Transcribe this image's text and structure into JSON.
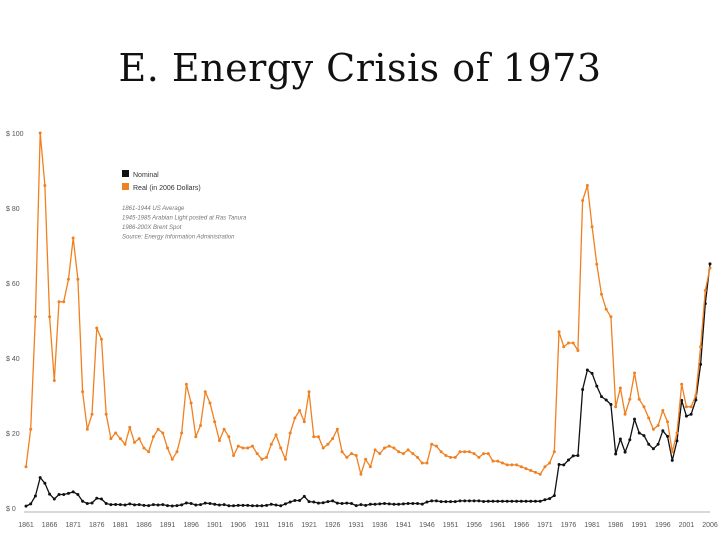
{
  "slide": {
    "title": "E. Energy Crisis of 1973"
  },
  "chart_data": {
    "type": "line",
    "title": "",
    "xlabel": "",
    "ylabel": "",
    "ylim": [
      0,
      100
    ],
    "xlim": [
      1861,
      2006
    ],
    "grid": false,
    "legend_placement": "top-left",
    "y_ticks": [
      "$ 0",
      "$ 20",
      "$ 40",
      "$ 60",
      "$ 80",
      "$ 100"
    ],
    "x_ticks": [
      "1861",
      "1866",
      "1871",
      "1876",
      "1881",
      "1886",
      "1891",
      "1896",
      "1901",
      "1906",
      "1911",
      "1916",
      "1921",
      "1926",
      "1931",
      "1936",
      "1941",
      "1946",
      "1951",
      "1956",
      "1961",
      "1966",
      "1971",
      "1976",
      "1981",
      "1986",
      "1991",
      "1996",
      "2001",
      "2006"
    ],
    "notes": [
      "1861-1944 US Average",
      "1945-1985 Arabian Light posted at Ras Tanura",
      "1986-200X Brent Spot",
      "Source: Energy Information Administration"
    ],
    "series": [
      {
        "name": "Nominal",
        "color": "#111111",
        "x": [
          1861,
          1862,
          1863,
          1864,
          1865,
          1866,
          1867,
          1868,
          1869,
          1870,
          1871,
          1872,
          1873,
          1874,
          1875,
          1876,
          1877,
          1878,
          1879,
          1880,
          1881,
          1882,
          1883,
          1884,
          1885,
          1886,
          1887,
          1888,
          1889,
          1890,
          1891,
          1892,
          1893,
          1894,
          1895,
          1896,
          1897,
          1898,
          1899,
          1900,
          1901,
          1902,
          1903,
          1904,
          1905,
          1906,
          1907,
          1908,
          1909,
          1910,
          1911,
          1912,
          1913,
          1914,
          1915,
          1916,
          1917,
          1918,
          1919,
          1920,
          1921,
          1922,
          1923,
          1924,
          1925,
          1926,
          1927,
          1928,
          1929,
          1930,
          1931,
          1932,
          1933,
          1934,
          1935,
          1936,
          1937,
          1938,
          1939,
          1940,
          1941,
          1942,
          1943,
          1944,
          1945,
          1946,
          1947,
          1948,
          1949,
          1950,
          1951,
          1952,
          1953,
          1954,
          1955,
          1956,
          1957,
          1958,
          1959,
          1960,
          1961,
          1962,
          1963,
          1964,
          1965,
          1966,
          1967,
          1968,
          1969,
          1970,
          1971,
          1972,
          1973,
          1974,
          1975,
          1976,
          1977,
          1978,
          1979,
          1980,
          1981,
          1982,
          1983,
          1984,
          1985,
          1986,
          1987,
          1988,
          1989,
          1990,
          1991,
          1992,
          1993,
          1994,
          1995,
          1996,
          1997,
          1998,
          1999,
          2000,
          2001,
          2002,
          2003,
          2004,
          2005,
          2006
        ],
        "values": [
          0.5,
          1.1,
          3.2,
          8.1,
          6.6,
          3.7,
          2.4,
          3.6,
          3.6,
          3.9,
          4.3,
          3.6,
          1.8,
          1.2,
          1.35,
          2.6,
          2.4,
          1.2,
          0.9,
          0.95,
          0.9,
          0.8,
          1.1,
          0.85,
          0.9,
          0.7,
          0.65,
          0.9,
          0.8,
          0.9,
          0.65,
          0.55,
          0.65,
          0.85,
          1.35,
          1.2,
          0.8,
          0.9,
          1.3,
          1.2,
          1.0,
          0.8,
          0.9,
          0.6,
          0.6,
          0.7,
          0.7,
          0.7,
          0.6,
          0.6,
          0.6,
          0.7,
          1.0,
          0.8,
          0.6,
          1.1,
          1.6,
          2.0,
          2.0,
          3.1,
          1.7,
          1.6,
          1.3,
          1.4,
          1.7,
          1.9,
          1.3,
          1.2,
          1.3,
          1.2,
          0.65,
          0.9,
          0.7,
          1.0,
          1.0,
          1.1,
          1.2,
          1.1,
          1.0,
          1.0,
          1.1,
          1.2,
          1.2,
          1.2,
          1.05,
          1.6,
          1.9,
          1.9,
          1.7,
          1.7,
          1.7,
          1.7,
          1.9,
          1.9,
          1.9,
          1.9,
          1.9,
          1.75,
          1.8,
          1.8,
          1.8,
          1.8,
          1.8,
          1.8,
          1.8,
          1.8,
          1.8,
          1.8,
          1.8,
          1.8,
          2.2,
          2.5,
          3.3,
          11.6,
          11.5,
          12.8,
          13.9,
          14.0,
          31.6,
          36.8,
          35.9,
          32.5,
          29.7,
          28.8,
          27.6,
          14.4,
          18.4,
          14.9,
          18.2,
          23.7,
          20.0,
          19.3,
          17.0,
          15.8,
          17.0,
          20.6,
          19.1,
          12.7,
          17.9,
          28.7,
          24.5,
          25.0,
          28.8,
          38.3,
          54.5,
          65.1
        ]
      },
      {
        "name": "Real (in 2006 Dollars)",
        "color": "#f08020",
        "x": [
          1861,
          1862,
          1863,
          1864,
          1865,
          1866,
          1867,
          1868,
          1869,
          1870,
          1871,
          1872,
          1873,
          1874,
          1875,
          1876,
          1877,
          1878,
          1879,
          1880,
          1881,
          1882,
          1883,
          1884,
          1885,
          1886,
          1887,
          1888,
          1889,
          1890,
          1891,
          1892,
          1893,
          1894,
          1895,
          1896,
          1897,
          1898,
          1899,
          1900,
          1901,
          1902,
          1903,
          1904,
          1905,
          1906,
          1907,
          1908,
          1909,
          1910,
          1911,
          1912,
          1913,
          1914,
          1915,
          1916,
          1917,
          1918,
          1919,
          1920,
          1921,
          1922,
          1923,
          1924,
          1925,
          1926,
          1927,
          1928,
          1929,
          1930,
          1931,
          1932,
          1933,
          1934,
          1935,
          1936,
          1937,
          1938,
          1939,
          1940,
          1941,
          1942,
          1943,
          1944,
          1945,
          1946,
          1947,
          1948,
          1949,
          1950,
          1951,
          1952,
          1953,
          1954,
          1955,
          1956,
          1957,
          1958,
          1959,
          1960,
          1961,
          1962,
          1963,
          1964,
          1965,
          1966,
          1967,
          1968,
          1969,
          1970,
          1971,
          1972,
          1973,
          1974,
          1975,
          1976,
          1977,
          1978,
          1979,
          1980,
          1981,
          1982,
          1983,
          1984,
          1985,
          1986,
          1987,
          1988,
          1989,
          1990,
          1991,
          1992,
          1993,
          1994,
          1995,
          1996,
          1997,
          1998,
          1999,
          2000,
          2001,
          2002,
          2003,
          2004,
          2005,
          2006
        ],
        "values": [
          11.0,
          21.0,
          51.0,
          100.0,
          86.0,
          51.0,
          34.0,
          55.0,
          55.0,
          61.0,
          72.0,
          61.0,
          31.0,
          21.0,
          25.0,
          48.0,
          45.0,
          25.0,
          18.5,
          20.0,
          18.5,
          17.0,
          21.5,
          17.5,
          18.5,
          16.0,
          15.0,
          19.0,
          21.0,
          20.0,
          16.0,
          13.0,
          15.0,
          20.0,
          33.0,
          28.0,
          19.0,
          22.0,
          31.0,
          28.0,
          23.0,
          18.0,
          21.0,
          19.0,
          14.0,
          16.5,
          16.0,
          16.0,
          16.5,
          14.5,
          13.0,
          13.5,
          17.0,
          19.5,
          16.0,
          13.0,
          20.0,
          24.0,
          26.0,
          23.0,
          31.0,
          19.0,
          19.0,
          16.0,
          17.0,
          18.5,
          21.0,
          15.0,
          13.5,
          14.5,
          14.0,
          9.0,
          13.0,
          11.0,
          15.5,
          14.5,
          16.0,
          16.5,
          16.0,
          15.0,
          14.5,
          15.5,
          14.5,
          13.5,
          12.0,
          12.0,
          17.0,
          16.5,
          15.0,
          14.0,
          13.5,
          13.5,
          15.0,
          15.0,
          15.0,
          14.5,
          13.5,
          14.5,
          14.5,
          12.5,
          12.5,
          12.0,
          11.5,
          11.5,
          11.5,
          11.0,
          10.5,
          10.0,
          9.5,
          9.0,
          11.0,
          12.0,
          15.0,
          47.0,
          43.0,
          44.0,
          44.0,
          42.0,
          82.0,
          86.0,
          75.0,
          65.0,
          57.0,
          53.0,
          51.0,
          27.0,
          32.0,
          25.0,
          29.0,
          36.0,
          29.0,
          27.0,
          24.0,
          21.0,
          22.0,
          26.0,
          23.0,
          15.0,
          20.0,
          33.0,
          27.0,
          27.0,
          30.0,
          43.0,
          58.0,
          64.0
        ]
      }
    ]
  },
  "colors": {
    "nominal": "#111111",
    "real": "#f08020",
    "axis": "#999999",
    "tick_text": "#555555"
  }
}
